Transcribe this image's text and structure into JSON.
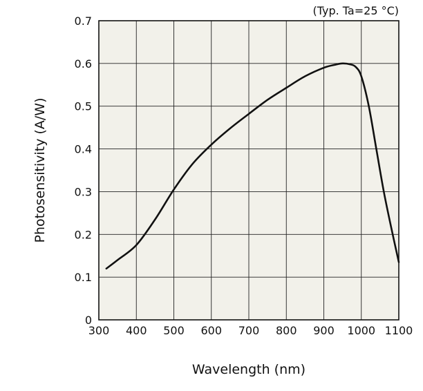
{
  "chart_data": {
    "type": "line",
    "title": "",
    "annotation": "(Typ. Ta=25 °C)",
    "xlabel": "Wavelength (nm)",
    "ylabel": "Photosensitivity (A/W)",
    "xlim": [
      300,
      1100
    ],
    "ylim": [
      0,
      0.7
    ],
    "xticks": [
      300,
      400,
      500,
      600,
      700,
      800,
      900,
      1000,
      1100
    ],
    "yticks": [
      0,
      0.1,
      0.2,
      0.3,
      0.4,
      0.5,
      0.6,
      0.7
    ],
    "xtick_labels": [
      "300",
      "400",
      "500",
      "600",
      "700",
      "800",
      "900",
      "1000",
      "1100"
    ],
    "ytick_labels": [
      "0",
      "0.1",
      "0.2",
      "0.3",
      "0.4",
      "0.5",
      "0.6",
      "0.7"
    ],
    "grid": true,
    "colors": {
      "plot_bg": "#f2f1ea",
      "line": "#111111",
      "grid": "#222222"
    },
    "series": [
      {
        "name": "Photosensitivity",
        "x": [
          320,
          350,
          400,
          450,
          500,
          550,
          600,
          650,
          700,
          750,
          800,
          850,
          900,
          930,
          950,
          970,
          985,
          1000,
          1020,
          1040,
          1060,
          1080,
          1100
        ],
        "y": [
          0.12,
          0.14,
          0.175,
          0.235,
          0.305,
          0.365,
          0.41,
          0.448,
          0.482,
          0.515,
          0.543,
          0.57,
          0.59,
          0.597,
          0.6,
          0.598,
          0.592,
          0.57,
          0.5,
          0.4,
          0.3,
          0.215,
          0.135
        ]
      }
    ]
  }
}
